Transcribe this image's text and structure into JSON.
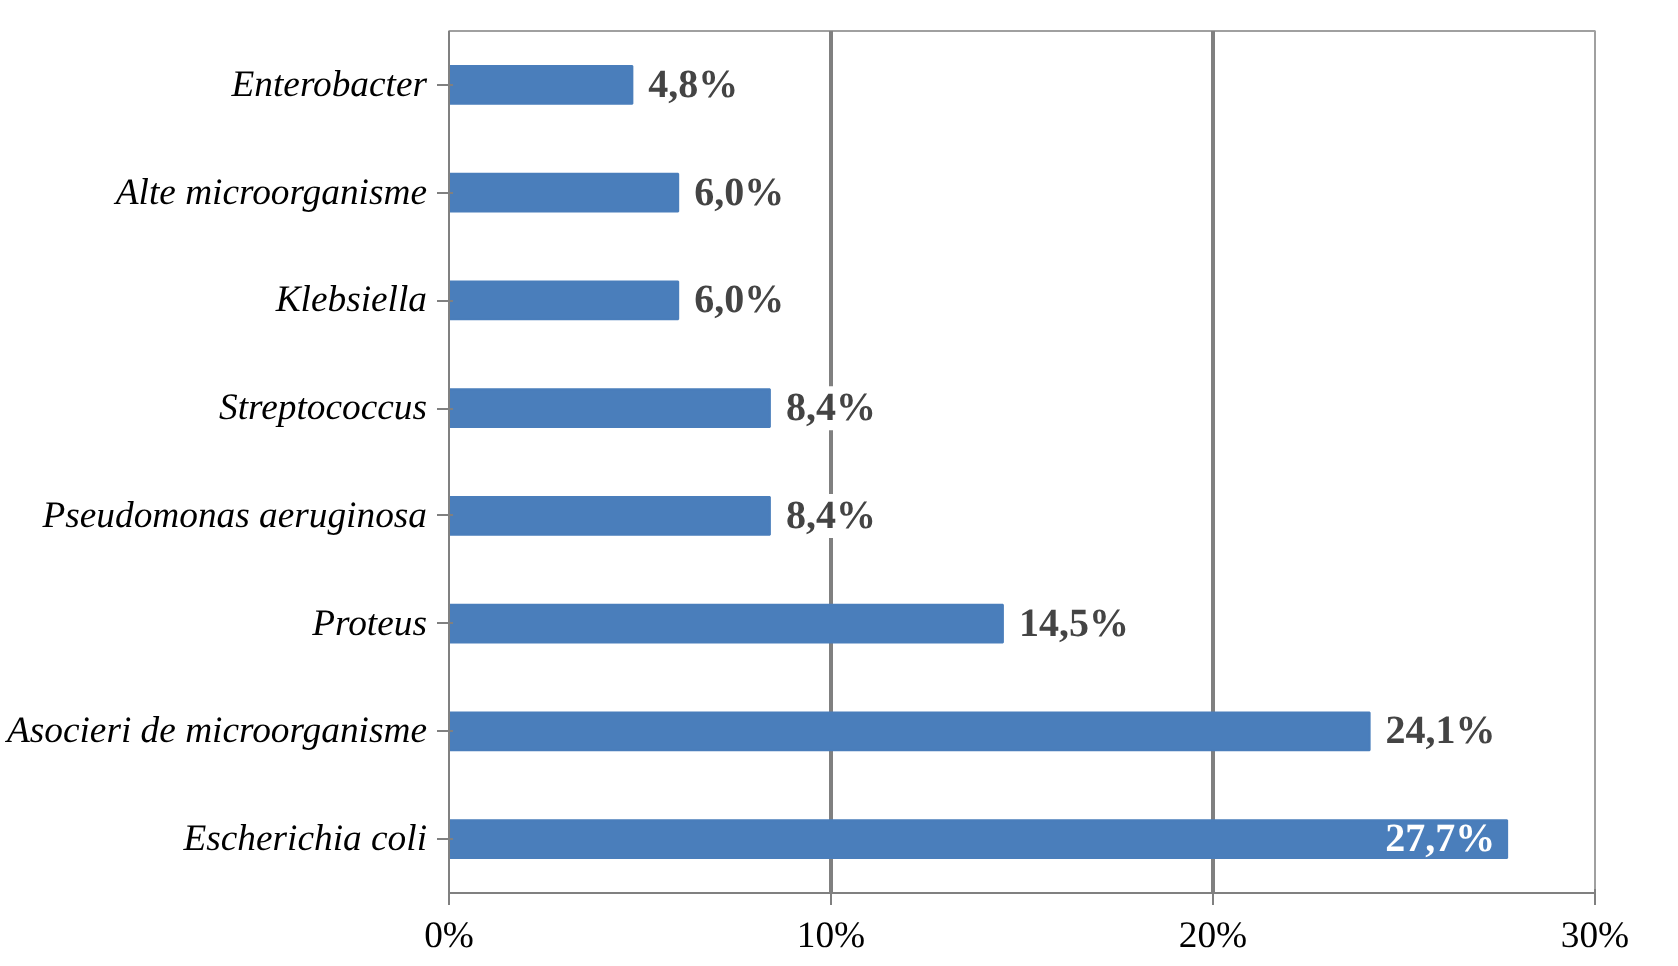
{
  "chart_data": {
    "type": "bar",
    "orientation": "horizontal",
    "categories": [
      "Enterobacter",
      "Alte microorganisme",
      "Klebsiella",
      "Streptococcus",
      "Pseudomonas aeruginosa",
      "Proteus",
      "Asocieri de microorganisme",
      "Escherichia coli"
    ],
    "values": [
      4.8,
      6.0,
      6.0,
      8.4,
      8.4,
      14.5,
      24.1,
      27.7
    ],
    "value_labels": [
      "4,8%",
      "6,0%",
      "6,0%",
      "8,4%",
      "8,4%",
      "14,5%",
      "24,1%",
      "27,7%"
    ],
    "color": "#4a7ebb",
    "xlim": [
      0,
      30
    ],
    "xticks": [
      {
        "value": 0,
        "label": "0%"
      },
      {
        "value": 10,
        "label": "10%"
      },
      {
        "value": 20,
        "label": "20%"
      },
      {
        "value": 30,
        "label": "30%"
      }
    ],
    "grid": "x"
  }
}
